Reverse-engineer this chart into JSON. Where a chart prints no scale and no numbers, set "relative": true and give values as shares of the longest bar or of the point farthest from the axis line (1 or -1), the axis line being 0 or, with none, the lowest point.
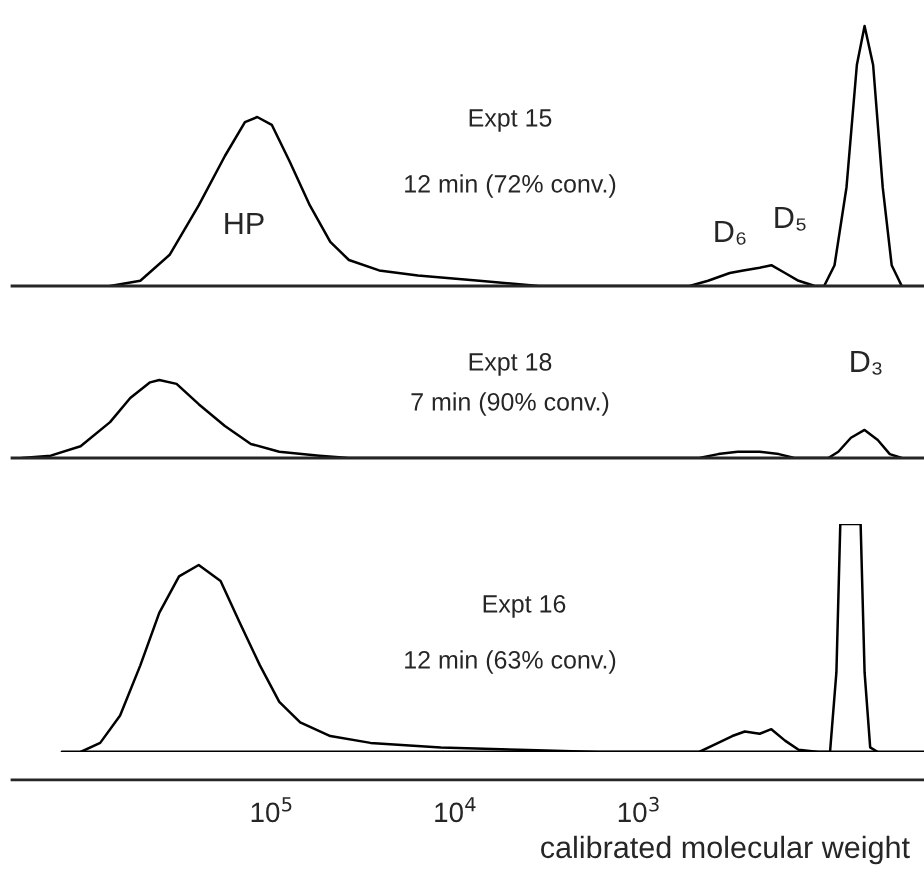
{
  "chart_data": [
    {
      "type": "line",
      "relative": true,
      "xlim": [
        2600000,
        28
      ],
      "log": "x",
      "tick_labels": false,
      "x": [
        760000,
        520000,
        360000,
        250000,
        180000,
        140000,
        120000,
        100000,
        80000,
        62000,
        48000,
        38000,
        26000,
        16000,
        7400,
        3500,
        1650,
        530,
        420,
        320,
        270,
        220,
        190,
        160,
        135,
        110,
        98,
        86,
        74,
        65,
        59,
        53,
        47,
        42,
        37
      ],
      "series": [
        {
          "color": "#000000",
          "values": [
            0,
            0.02,
            0.12,
            0.31,
            0.5,
            0.63,
            0.65,
            0.62,
            0.48,
            0.31,
            0.17,
            0.1,
            0.06,
            0.04,
            0.02,
            0,
            0,
            0,
            0.02,
            0.05,
            0.06,
            0.07,
            0.08,
            0.05,
            0.02,
            0,
            0,
            0.08,
            0.38,
            0.85,
            1,
            0.85,
            0.38,
            0.08,
            0
          ]
        }
      ],
      "annotations": [
        "Expt 15",
        "12 min (72% conv.)",
        "HP",
        "D₆",
        "D₅"
      ]
    },
    {
      "type": "line",
      "relative": true,
      "xlim": [
        2600000,
        28
      ],
      "log": "x",
      "tick_labels": false,
      "x": [
        2300000,
        1600000,
        1100000,
        760000,
        590000,
        460000,
        410000,
        330000,
        250000,
        180000,
        130000,
        91000,
        55000,
        38000,
        470,
        370,
        290,
        220,
        173,
        142,
        93,
        82,
        70,
        59,
        50,
        43,
        37
      ],
      "series": [
        {
          "color": "#000000",
          "values": [
            0,
            0.03,
            0.15,
            0.46,
            0.77,
            0.97,
            1,
            0.95,
            0.69,
            0.41,
            0.18,
            0.08,
            0.03,
            0,
            0,
            0.05,
            0.08,
            0.08,
            0.05,
            0,
            0,
            0.08,
            0.26,
            0.36,
            0.23,
            0.05,
            0
          ]
        }
      ],
      "annotations": [
        "Expt 18",
        "7 min (90% conv.)",
        "D₃"
      ]
    },
    {
      "type": "line",
      "relative": true,
      "xlim": [
        2600000,
        28
      ],
      "log": "x",
      "tick_labels": "x",
      "xticks": [
        {
          "value": 100000,
          "label": "10$^{5}$"
        },
        {
          "value": 10000,
          "label": "10$^{4}$"
        },
        {
          "value": 1000,
          "label": "10$^{3}$"
        }
      ],
      "xlabel": "calibrated molecular weight",
      "x": [
        1100000,
        860000,
        670000,
        520000,
        410000,
        320000,
        250000,
        190000,
        150000,
        116000,
        91000,
        70000,
        48000,
        29000,
        12000,
        4500,
        1650,
        470,
        370,
        310,
        265,
        220,
        190,
        160,
        135,
        105,
        91,
        84,
        80,
        62,
        59,
        55,
        50
      ],
      "series": [
        {
          "color": "#000000",
          "values": [
            0,
            0.04,
            0.16,
            0.38,
            0.61,
            0.77,
            0.82,
            0.75,
            0.57,
            0.38,
            0.22,
            0.13,
            0.07,
            0.04,
            0.02,
            0.01,
            0,
            0,
            0.04,
            0.07,
            0.09,
            0.08,
            0.1,
            0.05,
            0.01,
            0,
            0,
            0.35,
            1,
            1,
            0.35,
            0.02,
            0
          ]
        }
      ],
      "annotations": [
        "Expt 16",
        "12 min (63% conv.)"
      ]
    }
  ]
}
